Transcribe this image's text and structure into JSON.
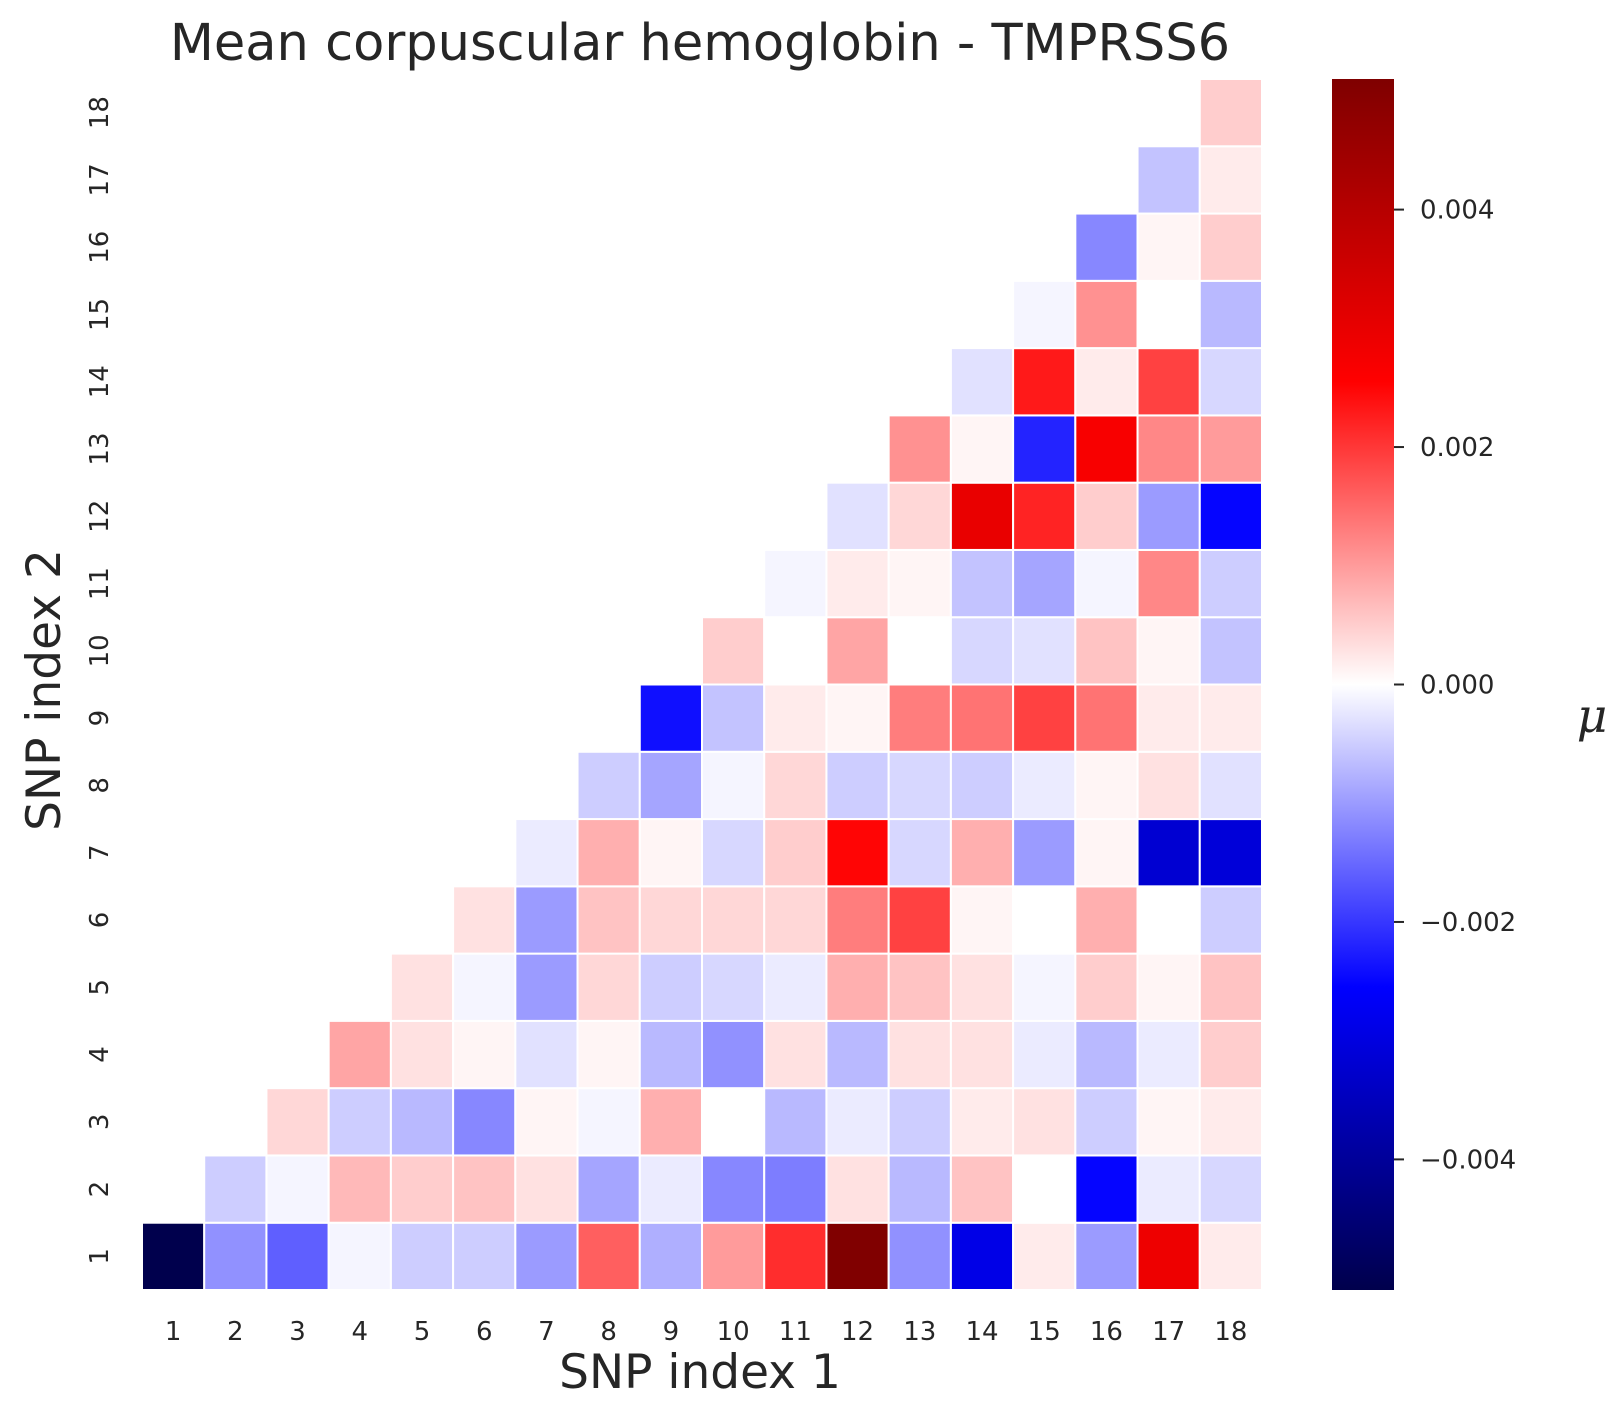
{
  "chart_data": {
    "type": "heatmap",
    "title": "Mean corpuscular hemoglobin - TMPRSS6",
    "xlabel": "SNP index 1",
    "ylabel": "SNP index 2",
    "x_categories": [
      "1",
      "2",
      "3",
      "4",
      "5",
      "6",
      "7",
      "8",
      "9",
      "10",
      "11",
      "12",
      "13",
      "14",
      "15",
      "16",
      "17",
      "18"
    ],
    "y_categories": [
      "1",
      "2",
      "3",
      "4",
      "5",
      "6",
      "7",
      "8",
      "9",
      "10",
      "11",
      "12",
      "13",
      "14",
      "15",
      "16",
      "17",
      "18"
    ],
    "mask": "upper-triangle (only cells with x >= y are shown)",
    "values": [
      [
        -0.0051,
        -0.0011,
        -0.0016,
        -0.0001,
        -0.0005,
        -0.0005,
        -0.001,
        0.0016,
        -0.0008,
        0.001,
        0.0021,
        0.0051,
        -0.0011,
        -0.0029,
        0.0002,
        -0.001,
        0.0029,
        0.0002
      ],
      [
        null,
        -0.0005,
        -0.0001,
        0.0007,
        0.0005,
        0.0006,
        0.0003,
        -0.0009,
        -0.0002,
        -0.0012,
        -0.0013,
        0.0003,
        -0.0007,
        0.0006,
        0.0,
        -0.0025,
        -0.0002,
        -0.0004
      ],
      [
        null,
        null,
        0.0004,
        -0.0005,
        -0.0007,
        -0.0012,
        0.0001,
        -0.0001,
        0.0008,
        0.0,
        -0.0007,
        -0.0002,
        -0.0005,
        0.0002,
        0.0003,
        -0.0005,
        0.0001,
        0.0002
      ],
      [
        null,
        null,
        null,
        0.0009,
        0.0003,
        0.0001,
        -0.0003,
        0.0001,
        -0.0007,
        -0.0011,
        0.0003,
        -0.0007,
        0.0003,
        0.0003,
        -0.0002,
        -0.0007,
        -0.0002,
        0.0005
      ],
      [
        null,
        null,
        null,
        null,
        0.0003,
        -0.0001,
        -0.001,
        0.0004,
        -0.0005,
        -0.0004,
        -0.0002,
        0.0008,
        0.0006,
        0.0003,
        -0.0001,
        0.0005,
        0.0001,
        0.0006
      ],
      [
        null,
        null,
        null,
        null,
        null,
        0.0003,
        -0.001,
        0.0006,
        0.0004,
        0.0004,
        0.0004,
        0.0013,
        0.0019,
        0.0001,
        0.0,
        0.0008,
        0.0,
        -0.0005
      ],
      [
        null,
        null,
        null,
        null,
        null,
        null,
        -0.0002,
        0.0008,
        0.0001,
        -0.0004,
        0.0005,
        0.0025,
        -0.0004,
        0.0008,
        -0.001,
        0.0001,
        -0.0032,
        -0.0031
      ],
      [
        null,
        null,
        null,
        null,
        null,
        null,
        null,
        -0.0005,
        -0.0009,
        -0.0001,
        0.0004,
        -0.0005,
        -0.0004,
        -0.0005,
        -0.0002,
        0.0001,
        0.0003,
        -0.0003
      ],
      [
        null,
        null,
        null,
        null,
        null,
        null,
        null,
        null,
        -0.0024,
        -0.0006,
        0.0002,
        0.0001,
        0.0013,
        0.0014,
        0.0019,
        0.0014,
        0.0002,
        0.0002
      ],
      [
        null,
        null,
        null,
        null,
        null,
        null,
        null,
        null,
        null,
        0.0005,
        0.0,
        0.0009,
        0.0,
        -0.0004,
        -0.0003,
        0.0006,
        0.0001,
        -0.0006
      ],
      [
        null,
        null,
        null,
        null,
        null,
        null,
        null,
        null,
        null,
        null,
        -0.0001,
        0.0002,
        0.0001,
        -0.0006,
        -0.0009,
        -0.0001,
        0.0012,
        -0.0005
      ],
      [
        null,
        null,
        null,
        null,
        null,
        null,
        null,
        null,
        null,
        null,
        null,
        -0.0003,
        0.0004,
        0.003,
        0.0022,
        0.0005,
        -0.001,
        -0.0025
      ],
      [
        null,
        null,
        null,
        null,
        null,
        null,
        null,
        null,
        null,
        null,
        null,
        null,
        0.0011,
        0.0001,
        -0.0022,
        0.0027,
        0.0012,
        0.001
      ],
      [
        null,
        null,
        null,
        null,
        null,
        null,
        null,
        null,
        null,
        null,
        null,
        null,
        null,
        -0.0003,
        0.0023,
        0.0002,
        0.0019,
        -0.0004
      ],
      [
        null,
        null,
        null,
        null,
        null,
        null,
        null,
        null,
        null,
        null,
        null,
        null,
        null,
        null,
        -0.0001,
        0.0011,
        0.0,
        -0.0007
      ],
      [
        null,
        null,
        null,
        null,
        null,
        null,
        null,
        null,
        null,
        null,
        null,
        null,
        null,
        null,
        null,
        -0.0012,
        0.0001,
        0.0005
      ],
      [
        null,
        null,
        null,
        null,
        null,
        null,
        null,
        null,
        null,
        null,
        null,
        null,
        null,
        null,
        null,
        null,
        -0.0006,
        0.0002
      ],
      [
        null,
        null,
        null,
        null,
        null,
        null,
        null,
        null,
        null,
        null,
        null,
        null,
        null,
        null,
        null,
        null,
        null,
        0.0005
      ]
    ],
    "colormap": "seismic",
    "vmin": -0.0051,
    "vmax": 0.0051,
    "colorbar": {
      "label": "μ",
      "ticks": [
        0.004,
        0.002,
        0.0,
        -0.002,
        -0.004
      ],
      "tick_labels": [
        "0.004",
        "0.002",
        "0.000",
        "−0.002",
        "−0.004"
      ]
    },
    "grid": false,
    "legend": "colorbar on right"
  }
}
